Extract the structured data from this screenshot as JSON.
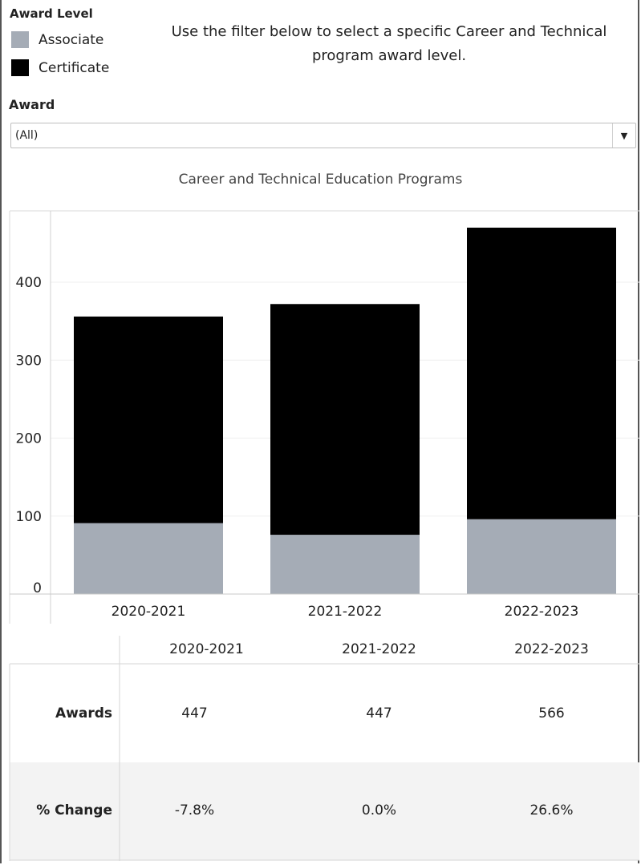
{
  "legend": {
    "title": "Award Level",
    "items": [
      {
        "label": "Associate",
        "color": "#a5acb6"
      },
      {
        "label": "Certificate",
        "color": "#000000"
      }
    ]
  },
  "instruction": "Use the filter below to select a specific Career and Technical program award level.",
  "filter": {
    "label": "Award",
    "value": "(All)"
  },
  "chart_data": {
    "type": "bar",
    "stacked": true,
    "title": "Career and Technical Education Programs",
    "categories": [
      "2020-2021",
      "2021-2022",
      "2022-2023"
    ],
    "series": [
      {
        "name": "Associate",
        "color": "#a5acb6",
        "values": [
          91,
          76,
          96
        ]
      },
      {
        "name": "Certificate",
        "color": "#000000",
        "values": [
          265,
          296,
          374
        ]
      }
    ],
    "yticks": [
      0,
      100,
      200,
      300,
      400
    ],
    "ylim": [
      -8,
      490
    ],
    "grid": true,
    "legend_position": "top-left"
  },
  "table": {
    "columns": [
      "2020-2021",
      "2021-2022",
      "2022-2023"
    ],
    "rows": [
      {
        "label": "Awards",
        "values": [
          "447",
          "447",
          "566"
        ]
      },
      {
        "label": "% Change",
        "values": [
          "-7.8%",
          "0.0%",
          "26.6%"
        ]
      }
    ]
  }
}
